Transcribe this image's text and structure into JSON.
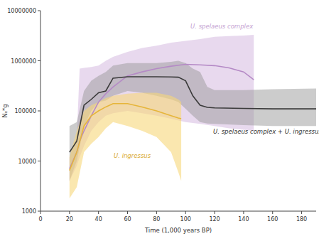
{
  "chart_data": {
    "type": "line",
    "x_label": "Time (1,000 years BP)",
    "y_label": "Nₑ*g",
    "log": "y",
    "xlim": [
      0,
      190
    ],
    "ylim": [
      1000,
      10000000
    ],
    "xticks": [
      0,
      20,
      40,
      60,
      80,
      100,
      120,
      140,
      160,
      180
    ],
    "yticks": [
      1000,
      10000,
      100000,
      1000000,
      10000000
    ],
    "series": [
      {
        "name": "U. spelaeus complex",
        "color": "#b58ac6",
        "x": [
          20,
          25,
          27,
          30,
          35,
          40,
          45,
          50,
          60,
          70,
          80,
          90,
          100,
          110,
          120,
          130,
          140,
          147
        ],
        "values": [
          7000,
          15000,
          25000,
          40000,
          80000,
          150000,
          220000,
          300000,
          500000,
          600000,
          700000,
          780000,
          850000,
          830000,
          800000,
          720000,
          600000,
          420000
        ],
        "lower": [
          4000,
          8000,
          12000,
          20000,
          40000,
          60000,
          80000,
          90000,
          100000,
          90000,
          80000,
          70000,
          60000,
          55000,
          50000,
          45000,
          42000,
          40000
        ],
        "upper": [
          12000,
          30000,
          700000,
          720000,
          750000,
          800000,
          1000000,
          1200000,
          1500000,
          1800000,
          2000000,
          2300000,
          2500000,
          2700000,
          3000000,
          3100000,
          3200000,
          3300000
        ]
      },
      {
        "name": "U. spelaeus complex + U. ingressus",
        "color": "#3a3a3a",
        "x": [
          20,
          25,
          30,
          35,
          40,
          45,
          50,
          60,
          70,
          80,
          90,
          95,
          100,
          105,
          110,
          115,
          120,
          140,
          160,
          190
        ],
        "values": [
          15000,
          25000,
          130000,
          170000,
          230000,
          250000,
          450000,
          480000,
          480000,
          480000,
          475000,
          470000,
          400000,
          200000,
          130000,
          118000,
          115000,
          112000,
          110000,
          110000
        ],
        "lower": [
          4000,
          10000,
          50000,
          100000,
          150000,
          160000,
          200000,
          250000,
          230000,
          200000,
          170000,
          150000,
          110000,
          80000,
          60000,
          56000,
          55000,
          52000,
          50000,
          50000
        ],
        "upper": [
          50000,
          60000,
          250000,
          400000,
          500000,
          600000,
          800000,
          900000,
          900000,
          900000,
          950000,
          1000000,
          900000,
          700000,
          600000,
          300000,
          260000,
          260000,
          270000,
          280000
        ]
      },
      {
        "name": "U. ingressus",
        "color": "#e6b53a",
        "x": [
          20,
          25,
          30,
          35,
          40,
          45,
          50,
          60,
          70,
          80,
          90,
          95,
          97
        ],
        "values": [
          6500,
          15000,
          50000,
          80000,
          100000,
          120000,
          140000,
          140000,
          120000,
          100000,
          80000,
          72000,
          70000
        ],
        "lower": [
          1800,
          3000,
          15000,
          22000,
          30000,
          45000,
          60000,
          50000,
          40000,
          30000,
          15000,
          6000,
          4000
        ],
        "upper": [
          12000,
          40000,
          100000,
          130000,
          150000,
          180000,
          200000,
          220000,
          230000,
          230000,
          200000,
          170000,
          150000
        ]
      }
    ]
  }
}
